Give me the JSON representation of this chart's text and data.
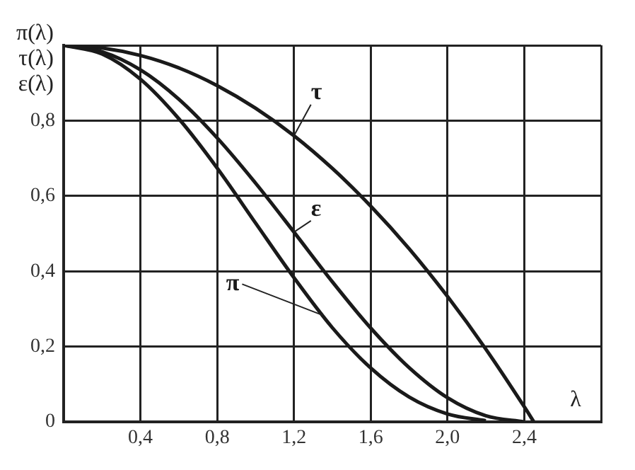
{
  "chart_data": {
    "type": "line",
    "ylabel": "π(λ) τ(λ) ε(λ)",
    "xlabel": "λ",
    "x": [
      0,
      0.2,
      0.4,
      0.6,
      0.8,
      1.0,
      1.2,
      1.4,
      1.6,
      1.8,
      2.0,
      2.2,
      2.4,
      2.45
    ],
    "series": [
      {
        "name": "π",
        "color": "#1a1a1a",
        "values": [
          1,
          0.977,
          0.91,
          0.805,
          0.674,
          0.528,
          0.383,
          0.25,
          0.143,
          0.066,
          0.021,
          0.003,
          null,
          null
        ]
      },
      {
        "name": "ε",
        "color": "#1a1a1a",
        "values": [
          1,
          0.983,
          0.935,
          0.857,
          0.754,
          0.634,
          0.504,
          0.372,
          0.249,
          0.144,
          0.064,
          0.016,
          0,
          null
        ]
      },
      {
        "name": "τ",
        "color": "#1a1a1a",
        "values": [
          1,
          0.993,
          0.973,
          0.94,
          0.893,
          0.833,
          0.76,
          0.673,
          0.573,
          0.46,
          0.333,
          0.193,
          0.04,
          0
        ]
      }
    ],
    "xlim": [
      0,
      2.8
    ],
    "ylim": [
      0,
      1
    ],
    "xticks": [
      {
        "value": 0,
        "label": null
      },
      {
        "value": 0.4,
        "label": "0,4"
      },
      {
        "value": 0.8,
        "label": "0,8"
      },
      {
        "value": 1.2,
        "label": "1,2"
      },
      {
        "value": 1.6,
        "label": "1,6"
      },
      {
        "value": 2.0,
        "label": "2,0"
      },
      {
        "value": 2.4,
        "label": "2,4"
      },
      {
        "value": 2.8,
        "label": null
      }
    ],
    "yticks": [
      0,
      {
        "value": 0.2,
        "label": "0,2"
      },
      {
        "value": 0.4,
        "label": "0,4"
      },
      {
        "value": 0.6,
        "label": "0,6"
      },
      {
        "value": 0.8,
        "label": "0,8"
      },
      {
        "value": 1,
        "label": null
      }
    ],
    "grid": true,
    "legend": false,
    "marker": "none",
    "line_style": "solid"
  }
}
